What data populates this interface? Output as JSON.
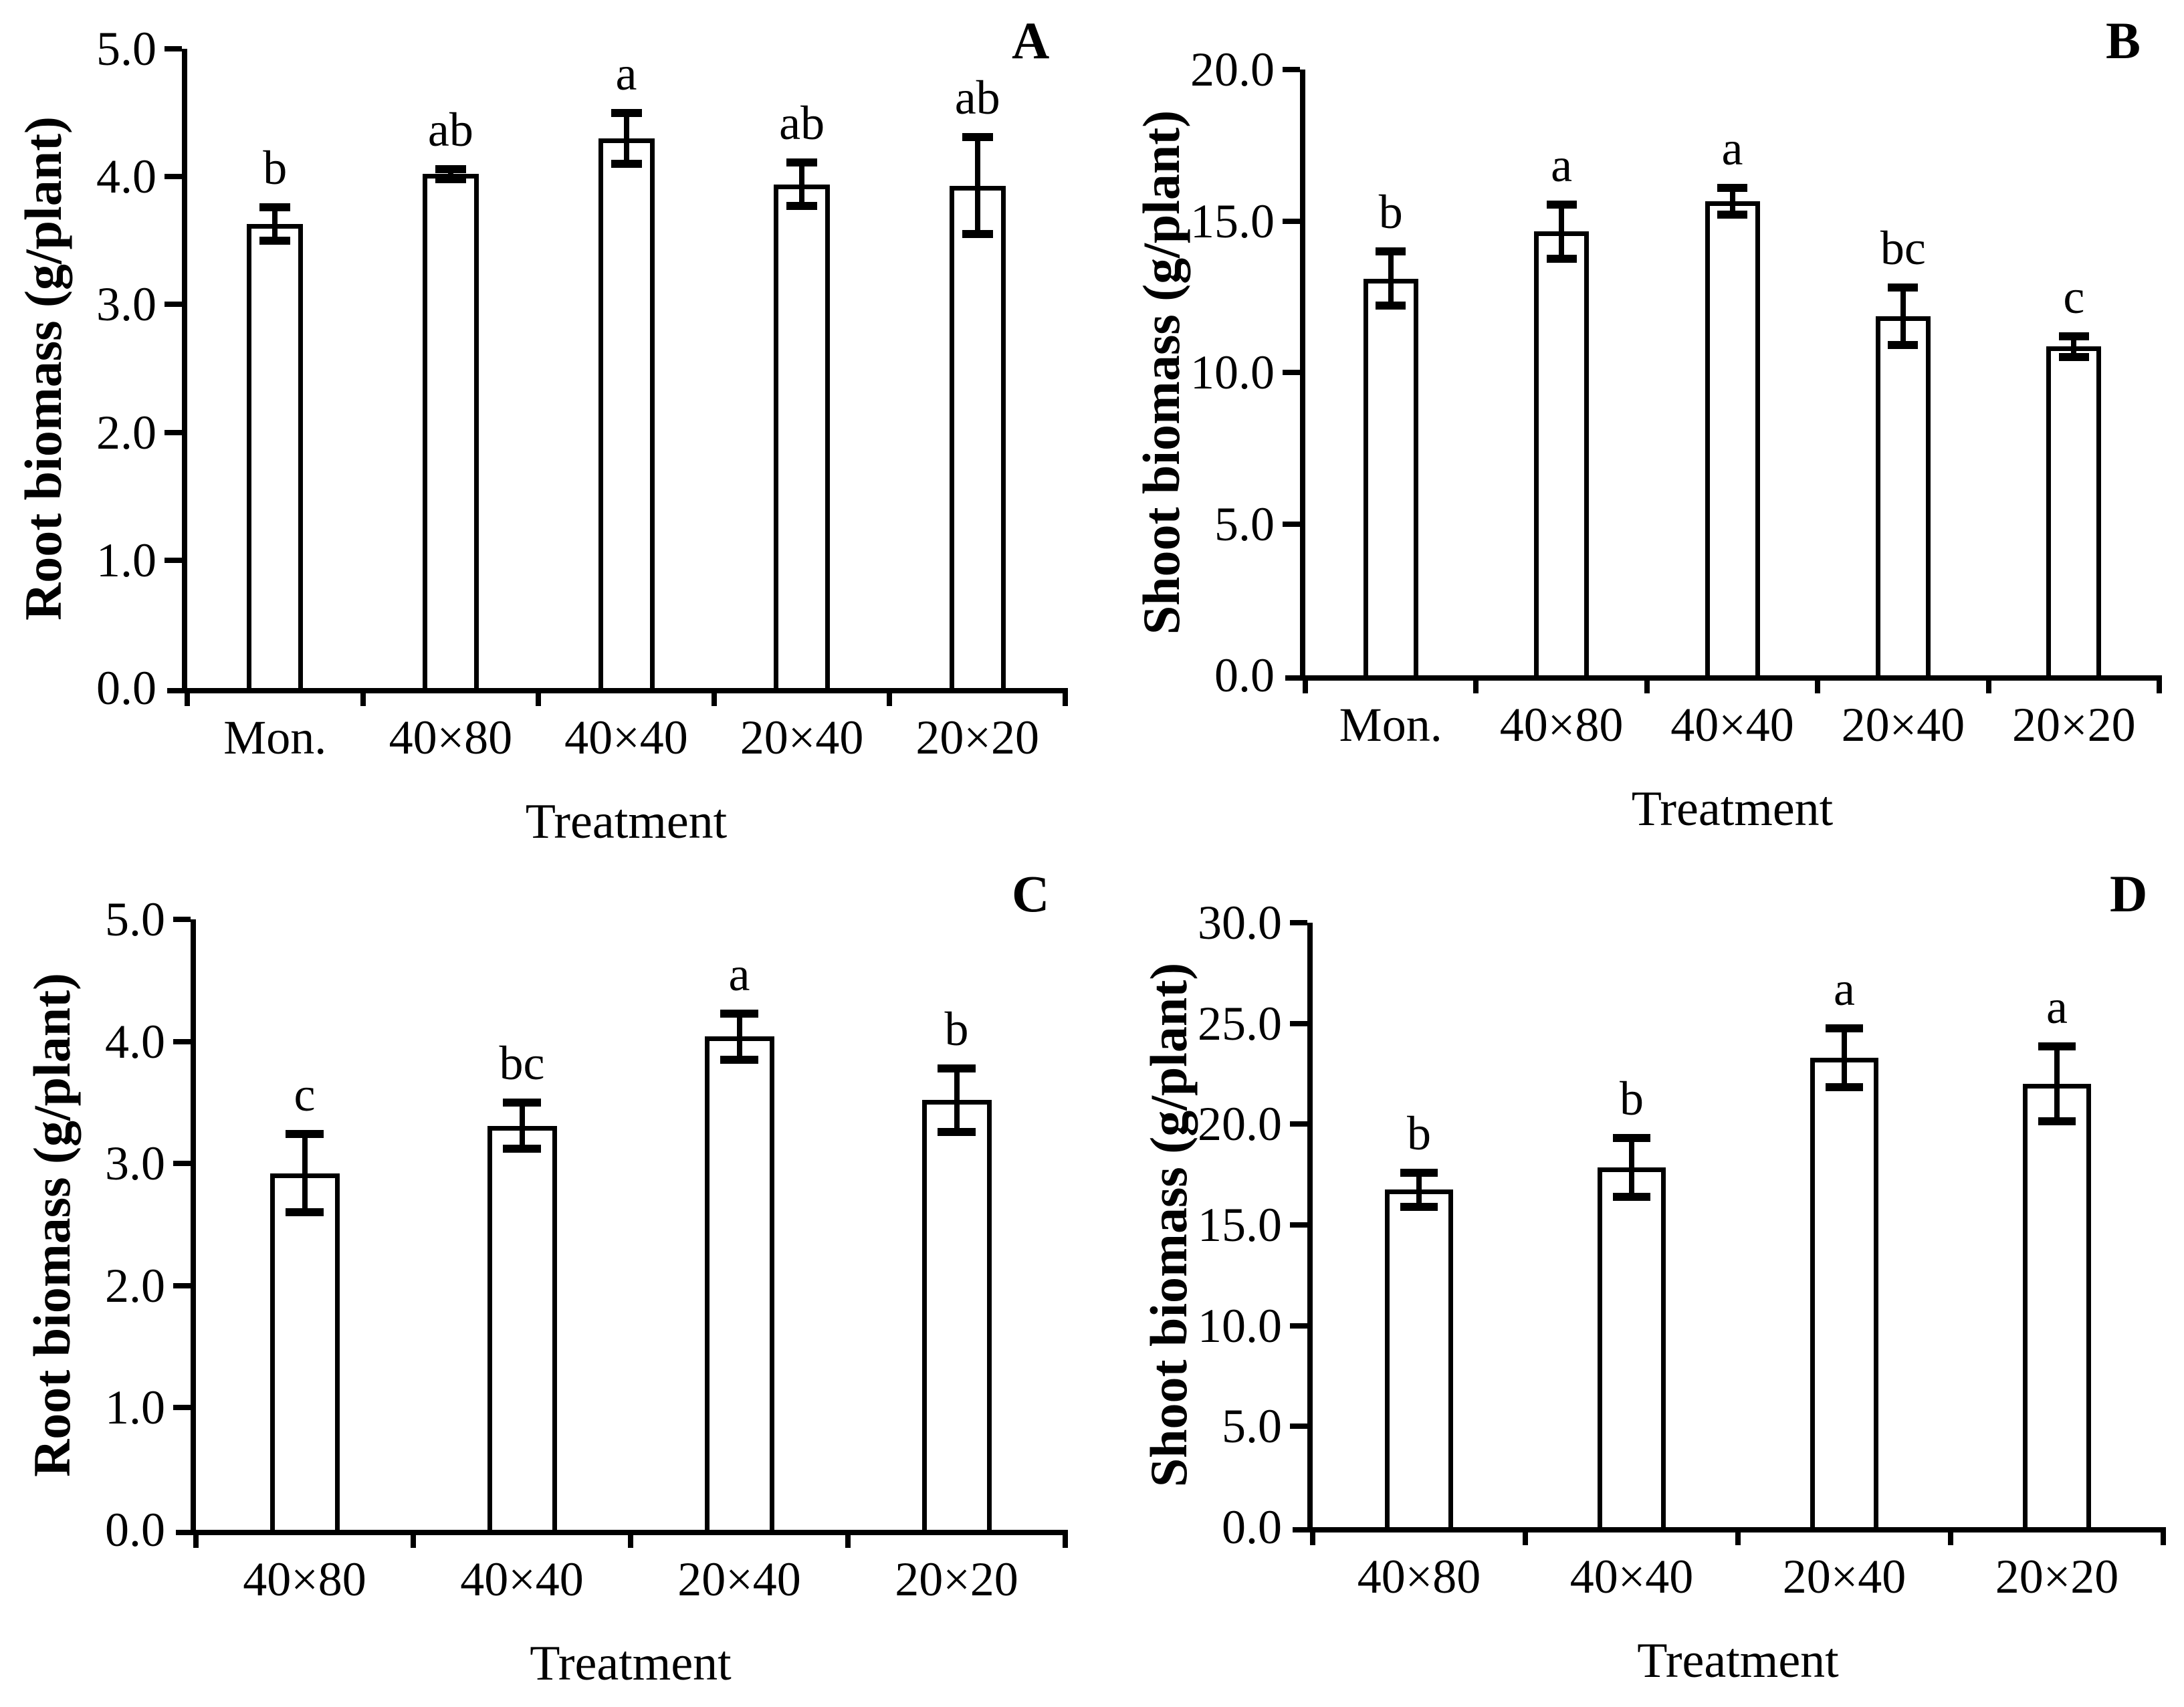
{
  "figure": {
    "background": "#ffffff",
    "ink_color": "#000000",
    "description_labels": {
      "x_axis_title": "Treatment"
    }
  },
  "chart_data": [
    {
      "panel_label": "A",
      "type": "bar",
      "title": "",
      "ylabel": "Root biomass (g/plant)",
      "xlabel": "Treatment",
      "ylim": [
        0,
        5.0
      ],
      "yticks": [
        0,
        1,
        2,
        3,
        4,
        5
      ],
      "ytick_labels": [
        "0.0",
        "1.0",
        "2.0",
        "3.0",
        "4.0",
        "5.0"
      ],
      "categories": [
        "Mon.",
        "40×80",
        "40×40",
        "20×40",
        "20×20"
      ],
      "values": [
        3.63,
        4.02,
        4.3,
        3.94,
        3.93
      ],
      "errors": [
        0.13,
        0.04,
        0.2,
        0.17,
        0.38
      ],
      "sig_labels": [
        "b",
        "ab",
        "a",
        "ab",
        "ab"
      ],
      "legend": "none",
      "grid": "off",
      "bar_fill": "#ffffff",
      "bar_border": "#000000"
    },
    {
      "panel_label": "B",
      "type": "bar",
      "title": "",
      "ylabel": "Shoot biomass (g/plant)",
      "xlabel": "Treatment",
      "ylim": [
        0,
        20.0
      ],
      "yticks": [
        0,
        5,
        10,
        15,
        20
      ],
      "ytick_labels": [
        "0.0",
        "5.0",
        "10.0",
        "15.0",
        "20.0"
      ],
      "categories": [
        "Mon.",
        "40×80",
        "40×40",
        "20×40",
        "20×20"
      ],
      "values": [
        13.1,
        14.65,
        15.65,
        11.85,
        10.85
      ],
      "errors": [
        0.9,
        0.9,
        0.45,
        0.95,
        0.35
      ],
      "sig_labels": [
        "b",
        "a",
        "a",
        "bc",
        "c"
      ],
      "legend": "none",
      "grid": "off",
      "bar_fill": "#ffffff",
      "bar_border": "#000000"
    },
    {
      "panel_label": "C",
      "type": "bar",
      "title": "",
      "ylabel": "Root biomass (g/plant)",
      "xlabel": "Treatment",
      "ylim": [
        0,
        5.0
      ],
      "yticks": [
        0,
        1,
        2,
        3,
        4,
        5
      ],
      "ytick_labels": [
        "0.0",
        "1.0",
        "2.0",
        "3.0",
        "4.0",
        "5.0"
      ],
      "categories": [
        "40×80",
        "40×40",
        "20×40",
        "20×20"
      ],
      "values": [
        2.92,
        3.31,
        4.04,
        3.52
      ],
      "errors": [
        0.32,
        0.19,
        0.19,
        0.26
      ],
      "sig_labels": [
        "c",
        "bc",
        "a",
        "b"
      ],
      "legend": "none",
      "grid": "off",
      "bar_fill": "#ffffff",
      "bar_border": "#000000"
    },
    {
      "panel_label": "D",
      "type": "bar",
      "title": "",
      "ylabel": "Shoot biomass (g/plant)",
      "xlabel": "Treatment",
      "ylim": [
        0,
        30.0
      ],
      "yticks": [
        0,
        5,
        10,
        15,
        20,
        25,
        30
      ],
      "ytick_labels": [
        "0.0",
        "5.0",
        "10.0",
        "15.0",
        "20.0",
        "25.0",
        "30.0"
      ],
      "categories": [
        "40×80",
        "40×40",
        "20×40",
        "20×20"
      ],
      "values": [
        16.75,
        17.85,
        23.3,
        22.0
      ],
      "errors": [
        0.85,
        1.45,
        1.45,
        1.85
      ],
      "sig_labels": [
        "b",
        "b",
        "a",
        "a"
      ],
      "legend": "none",
      "grid": "off",
      "bar_fill": "#ffffff",
      "bar_border": "#000000"
    }
  ]
}
